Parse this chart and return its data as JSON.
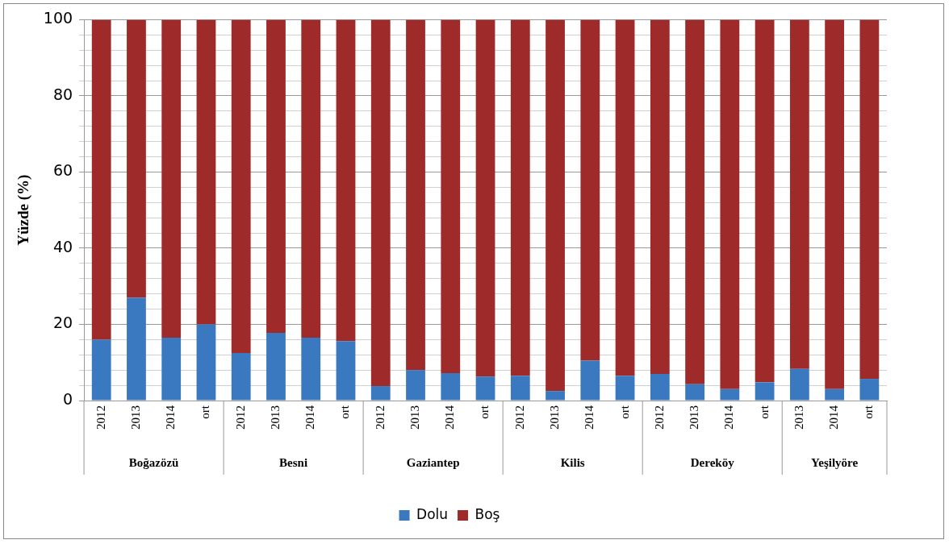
{
  "chart_data": {
    "type": "bar",
    "stacked": true,
    "ylabel": "Yüzde (%)",
    "categories": [
      "2012",
      "2013",
      "2014",
      "ort",
      "2012",
      "2013",
      "2014",
      "ort",
      "2012",
      "2013",
      "2014",
      "ort",
      "2012",
      "2013",
      "2014",
      "ort",
      "2012",
      "2013",
      "2014",
      "ort",
      "2013",
      "2014",
      "ort"
    ],
    "annotations": [
      "Boğazözü",
      "Besni",
      "Gaziantep",
      "Kilis",
      "Dereköy",
      "Yeşilyöre"
    ],
    "series": [
      {
        "name": "Dolu",
        "color": "#3a78c0",
        "values": [
          16,
          27,
          16.5,
          20,
          12.5,
          17.8,
          16.5,
          15.6,
          3.8,
          8,
          7.2,
          6.3,
          6.5,
          2.5,
          10.5,
          6.5,
          7,
          4.3,
          3,
          4.8,
          8.3,
          3,
          5.7
        ]
      },
      {
        "name": "Boş",
        "color": "#9e2a2a",
        "values": [
          84,
          73,
          83.5,
          80,
          87.5,
          82.2,
          83.5,
          84.4,
          96.2,
          92,
          92.8,
          93.7,
          93.5,
          97.5,
          89.5,
          93.5,
          93,
          95.7,
          97,
          95.2,
          91.7,
          97,
          94.3
        ]
      }
    ],
    "ylim": [
      0,
      100
    ],
    "yticks": [
      0,
      {
        "value": 4,
        "label": null
      },
      {
        "value": 8,
        "label": null
      },
      {
        "value": 12,
        "label": null
      },
      {
        "value": 16,
        "label": null
      },
      20,
      {
        "value": 24,
        "label": null
      },
      {
        "value": 28,
        "label": null
      },
      {
        "value": 32,
        "label": null
      },
      {
        "value": 36,
        "label": null
      },
      40,
      {
        "value": 44,
        "label": null
      },
      {
        "value": 48,
        "label": null
      },
      {
        "value": 52,
        "label": null
      },
      {
        "value": 56,
        "label": null
      },
      60,
      {
        "value": 64,
        "label": null
      },
      {
        "value": 68,
        "label": null
      },
      {
        "value": 72,
        "label": null
      },
      {
        "value": 76,
        "label": null
      },
      80,
      {
        "value": 84,
        "label": null
      },
      {
        "value": 88,
        "label": null
      },
      {
        "value": 92,
        "label": null
      },
      {
        "value": 96,
        "label": null
      },
      100
    ],
    "grid": true,
    "legend": "bottom"
  }
}
